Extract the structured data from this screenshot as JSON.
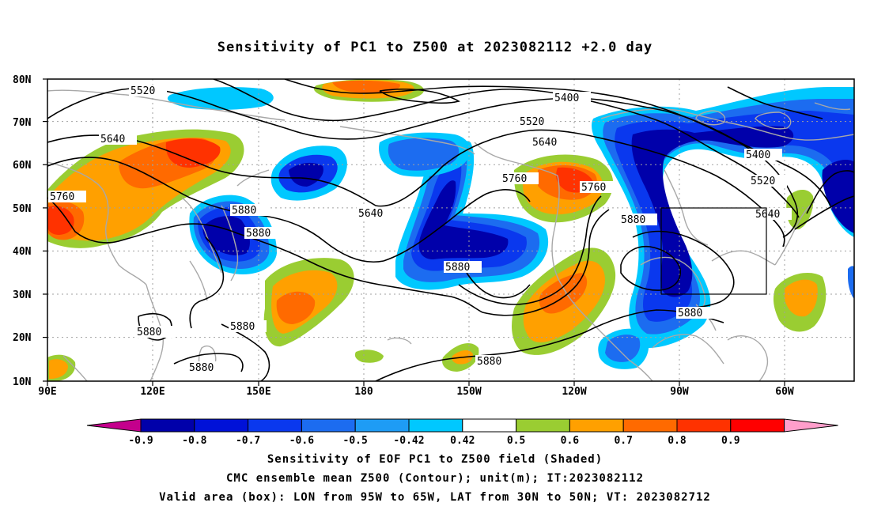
{
  "title": "Sensitivity of PC1 to Z500 at 2023082112 +2.0 day",
  "axes": {
    "lat_labels": [
      "80N",
      "70N",
      "60N",
      "50N",
      "40N",
      "30N",
      "20N",
      "10N"
    ],
    "lon_labels": [
      "90E",
      "120E",
      "150E",
      "180",
      "150W",
      "120W",
      "90W",
      "60W"
    ]
  },
  "contour_labels": [
    "5520",
    "5400",
    "5520",
    "5640",
    "5640",
    "5400",
    "5520",
    "5760",
    "5760",
    "5760",
    "5640",
    "5640",
    "5880",
    "5880",
    "5880",
    "5880",
    "5880",
    "5880",
    "5880",
    "5880"
  ],
  "valid_box": {
    "lon_range": [
      "95W",
      "65W"
    ],
    "lat_range": [
      "30N",
      "50N"
    ]
  },
  "colorbar": {
    "labels": [
      "-0.9",
      "-0.8",
      "-0.7",
      "-0.6",
      "-0.5",
      "-0.42",
      "0.42",
      "0.5",
      "0.6",
      "0.7",
      "0.8",
      "0.9"
    ],
    "colors": [
      "#c4008c",
      "#0000aa",
      "#0011d8",
      "#0a38ee",
      "#1c6cf0",
      "#1e9cf5",
      "#00c8ff",
      "#ffffff",
      "#9acd32",
      "#ffa000",
      "#ff6a00",
      "#ff3200",
      "#ff0000",
      "#ff9ecb"
    ]
  },
  "captions": {
    "line1": "Sensitivity of EOF PC1 to Z500 field (Shaded)",
    "line2": "CMC ensemble mean Z500 (Contour); unit(m); IT:2023082112",
    "line3": "Valid area (box): LON from 95W to 65W, LAT from 30N to 50N; VT: 2023082712"
  }
}
